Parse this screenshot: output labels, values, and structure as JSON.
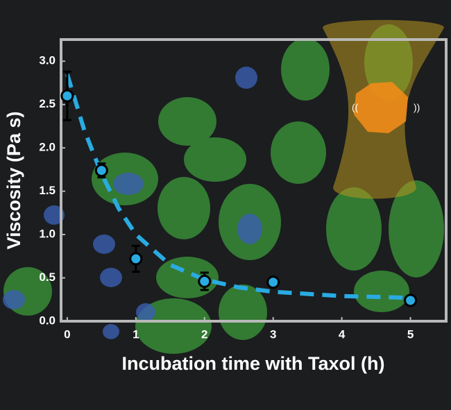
{
  "chart_data": {
    "type": "scatter",
    "x_label": "Incubation time with Taxol (h)",
    "y_label": "Viscosity (Pa s)",
    "xlim": [
      -0.09,
      5.52
    ],
    "ylim": [
      0,
      3.25
    ],
    "xticks": [
      0,
      1,
      2,
      3,
      4,
      5
    ],
    "yticks": [
      {
        "value": 0,
        "label": "0.0"
      },
      {
        "value": 0.5,
        "label": "0.5"
      },
      {
        "value": 1,
        "label": "1.0"
      },
      {
        "value": 1.5,
        "label": "1.5"
      },
      {
        "value": 2,
        "label": "2.0"
      },
      {
        "value": 2.5,
        "label": "2.5"
      },
      {
        "value": 3,
        "label": "3.0"
      }
    ],
    "series": [
      {
        "color": "#29abe2",
        "x": [
          0,
          0.5,
          1,
          2,
          3,
          5
        ],
        "values": [
          2.6,
          1.74,
          0.72,
          0.46,
          0.45,
          0.24
        ],
        "errors": [
          0.28,
          0.08,
          0.15,
          0.1,
          0.05,
          0.03
        ]
      },
      {
        "color": "#29abe2",
        "style": "dashed",
        "x": [
          0,
          0.25,
          0.5,
          0.75,
          1,
          1.5,
          2,
          2.5,
          3,
          4,
          5
        ],
        "values": [
          2.85,
          2.2,
          1.7,
          1.3,
          1.0,
          0.65,
          0.48,
          0.39,
          0.34,
          0.29,
          0.27
        ]
      }
    ]
  }
}
